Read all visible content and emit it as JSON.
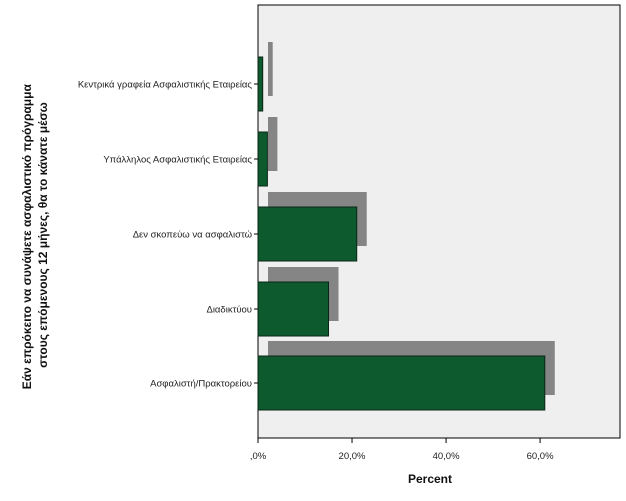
{
  "chart_data": {
    "type": "bar",
    "orientation": "horizontal",
    "categories": [
      "Κεντρικά γραφεία Ασφαλιστικής Εταιρείας",
      "Υπάλληλος Ασφαλιστικής Εταιρείας",
      "Δεν σκοπεύω να ασφαλιστώ",
      "Διαδικτύου",
      "Ασφαλιστή/Πρακτορείου"
    ],
    "values": [
      1.0,
      2.0,
      21.0,
      15.0,
      61.0
    ],
    "xlabel": "Percent",
    "ylabel_lines": [
      "Εάν επρόκειτο να συνάψετε ασφαλιστικό πρόγραμμα",
      "στους επόμενους 12 μήνες, θα το κάνατε μέσω"
    ],
    "xlim": [
      0,
      77
    ],
    "xticks": [
      0,
      20,
      40,
      60
    ],
    "xtick_labels": [
      ",0%",
      "20,0%",
      "40,0%",
      "60,0%"
    ],
    "grid": false,
    "legend": "none",
    "style": "3d-shadow"
  },
  "colors": {
    "bar": "#0d5a2e",
    "bar_edge": "#0a2616",
    "shadow": "#858585",
    "plot_background": "#efefef",
    "frame": "#000000"
  }
}
